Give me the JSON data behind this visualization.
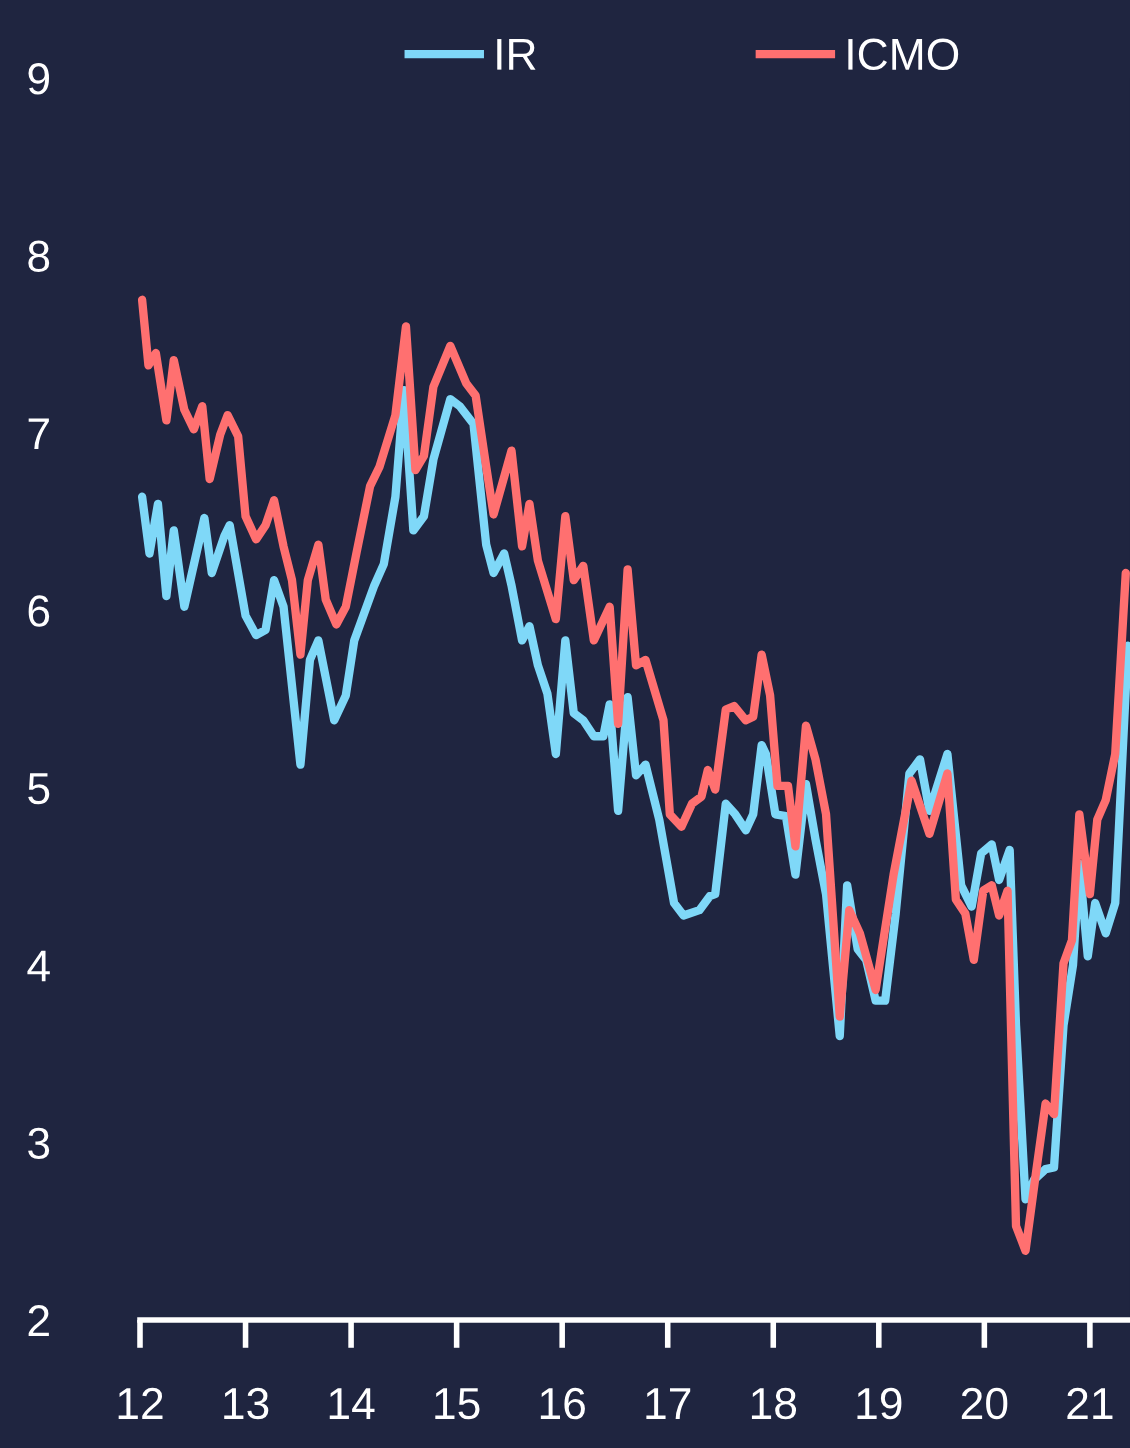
{
  "chart_data": {
    "type": "line",
    "xlim": [
      12,
      21.38
    ],
    "xticks": [
      12,
      13,
      14,
      15,
      16,
      17,
      18,
      19,
      20,
      21
    ],
    "ylim": [
      2,
      9
    ],
    "yticks": [
      2,
      3,
      4,
      5,
      6,
      7,
      8,
      9
    ],
    "grid": false,
    "legend": "top",
    "marker": "none",
    "line_style": "solid",
    "series": [
      {
        "name": "IR",
        "color": "#7fd8f8",
        "x": [
          12.02,
          12.09,
          12.17,
          12.25,
          12.32,
          12.42,
          12.61,
          12.68,
          12.8,
          12.85,
          13.0,
          13.1,
          13.19,
          13.27,
          13.36,
          13.52,
          13.61,
          13.69,
          13.84,
          13.95,
          14.03,
          14.22,
          14.31,
          14.42,
          14.5,
          14.59,
          14.69,
          14.78,
          14.94,
          15.03,
          15.16,
          15.28,
          15.35,
          15.45,
          15.52,
          15.62,
          15.69,
          15.77,
          15.86,
          15.94,
          16.03,
          16.11,
          16.2,
          16.3,
          16.39,
          16.45,
          16.53,
          16.62,
          16.7,
          16.79,
          16.92,
          17.06,
          17.15,
          17.3,
          17.4,
          17.45,
          17.55,
          17.64,
          17.74,
          17.81,
          17.89,
          17.93,
          18.02,
          18.12,
          18.21,
          18.31,
          18.4,
          18.5,
          18.63,
          18.7,
          18.8,
          18.88,
          18.97,
          19.06,
          19.16,
          19.29,
          19.39,
          19.48,
          19.65,
          19.78,
          19.88,
          19.97,
          20.07,
          20.14,
          20.24,
          20.3,
          20.39,
          20.47,
          20.58,
          20.66,
          20.75,
          20.84,
          20.9,
          20.98,
          21.05,
          21.15,
          21.24,
          21.36
        ],
        "values": [
          6.64,
          6.32,
          6.6,
          6.08,
          6.45,
          6.02,
          6.52,
          6.21,
          6.42,
          6.48,
          5.97,
          5.86,
          5.89,
          6.17,
          6.02,
          5.13,
          5.72,
          5.83,
          5.38,
          5.52,
          5.83,
          6.14,
          6.26,
          6.64,
          7.24,
          6.45,
          6.53,
          6.85,
          7.19,
          7.15,
          7.05,
          6.37,
          6.21,
          6.32,
          6.14,
          5.83,
          5.91,
          5.69,
          5.53,
          5.19,
          5.83,
          5.42,
          5.38,
          5.29,
          5.29,
          5.47,
          4.87,
          5.51,
          5.07,
          5.13,
          4.82,
          4.35,
          4.28,
          4.31,
          4.39,
          4.4,
          4.91,
          4.85,
          4.76,
          4.85,
          5.24,
          5.19,
          4.85,
          4.84,
          4.51,
          5.02,
          4.71,
          4.4,
          3.6,
          4.45,
          4.09,
          4.03,
          3.8,
          3.8,
          4.29,
          5.08,
          5.16,
          4.87,
          5.19,
          4.45,
          4.33,
          4.63,
          4.68,
          4.48,
          4.65,
          3.66,
          2.68,
          2.79,
          2.85,
          2.86,
          3.66,
          4.0,
          4.57,
          4.05,
          4.35,
          4.18,
          4.35,
          5.8
        ]
      },
      {
        "name": "ICMO",
        "color": "#ff7070",
        "x": [
          12.02,
          12.08,
          12.15,
          12.25,
          12.32,
          12.42,
          12.51,
          12.59,
          12.66,
          12.76,
          12.83,
          12.93,
          13.0,
          13.1,
          13.19,
          13.27,
          13.36,
          13.44,
          13.52,
          13.59,
          13.69,
          13.76,
          13.86,
          13.95,
          14.05,
          14.18,
          14.27,
          14.42,
          14.52,
          14.61,
          14.69,
          14.78,
          14.94,
          15.09,
          15.18,
          15.28,
          15.35,
          15.52,
          15.62,
          15.69,
          15.77,
          15.94,
          16.03,
          16.11,
          16.2,
          16.3,
          16.45,
          16.53,
          16.62,
          16.7,
          16.79,
          16.96,
          17.02,
          17.13,
          17.23,
          17.32,
          17.38,
          17.45,
          17.55,
          17.63,
          17.74,
          17.81,
          17.89,
          17.97,
          18.04,
          18.14,
          18.21,
          18.31,
          18.4,
          18.5,
          18.63,
          18.72,
          18.82,
          18.97,
          19.14,
          19.31,
          19.48,
          19.65,
          19.73,
          19.82,
          19.9,
          19.99,
          20.07,
          20.14,
          20.22,
          20.3,
          20.39,
          20.48,
          20.58,
          20.66,
          20.75,
          20.83,
          20.9,
          21.0,
          21.07,
          21.15,
          21.24,
          21.34
        ],
        "values": [
          7.75,
          7.38,
          7.45,
          7.07,
          7.41,
          7.13,
          7.02,
          7.15,
          6.74,
          6.99,
          7.1,
          6.98,
          6.53,
          6.4,
          6.48,
          6.62,
          6.36,
          6.17,
          5.75,
          6.17,
          6.37,
          6.06,
          5.92,
          6.02,
          6.32,
          6.7,
          6.81,
          7.1,
          7.6,
          6.79,
          6.87,
          7.26,
          7.49,
          7.28,
          7.21,
          6.81,
          6.54,
          6.9,
          6.36,
          6.6,
          6.28,
          5.95,
          6.53,
          6.17,
          6.25,
          5.83,
          6.02,
          5.36,
          6.23,
          5.69,
          5.72,
          5.38,
          4.85,
          4.78,
          4.91,
          4.95,
          5.1,
          4.99,
          5.44,
          5.46,
          5.38,
          5.4,
          5.75,
          5.52,
          5.01,
          5.01,
          4.67,
          5.35,
          5.16,
          4.85,
          3.71,
          4.31,
          4.18,
          3.86,
          4.51,
          5.04,
          4.74,
          5.08,
          4.37,
          4.29,
          4.03,
          4.42,
          4.45,
          4.28,
          4.42,
          2.53,
          2.39,
          2.79,
          3.22,
          3.16,
          4.01,
          4.14,
          4.85,
          4.4,
          4.82,
          4.93,
          5.19,
          6.21
        ]
      }
    ]
  }
}
